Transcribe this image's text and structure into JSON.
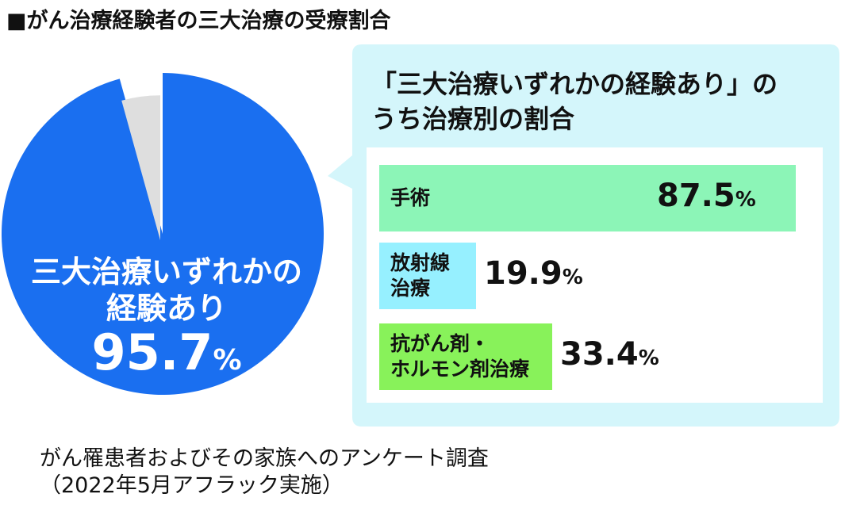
{
  "title": "■がん治療経験者の三大治療の受療割合",
  "chart_data": [
    {
      "type": "pie",
      "slices": [
        {
          "label_line1": "三大治療いずれかの",
          "label_line2": "経験あり",
          "value": 95.7,
          "color": "#1a6ff0"
        },
        {
          "value": 4.3,
          "color": "#dedede"
        }
      ],
      "value_text": "95.7",
      "unit": "%"
    },
    {
      "type": "bar",
      "title_line1": "「三大治療いずれかの経験あり」の",
      "title_line2": "うち治療別の割合",
      "categories": [
        {
          "lines": [
            "手術"
          ],
          "value": 87.5,
          "value_text": "87.5",
          "color": "#8cf5b7"
        },
        {
          "lines": [
            "放射線",
            "治療"
          ],
          "value": 19.9,
          "value_text": "19.9",
          "color": "#96f0ff"
        },
        {
          "lines": [
            "抗がん剤・",
            "ホルモン剤治療"
          ],
          "value": 33.4,
          "value_text": "33.4",
          "color": "#88f25a"
        }
      ],
      "unit": "%",
      "callout_color": "#d4f6fb"
    }
  ],
  "footnote": {
    "line1": "がん罹患者およびその家族へのアンケート調査",
    "line2": "（2022年5月アフラック実施）"
  }
}
